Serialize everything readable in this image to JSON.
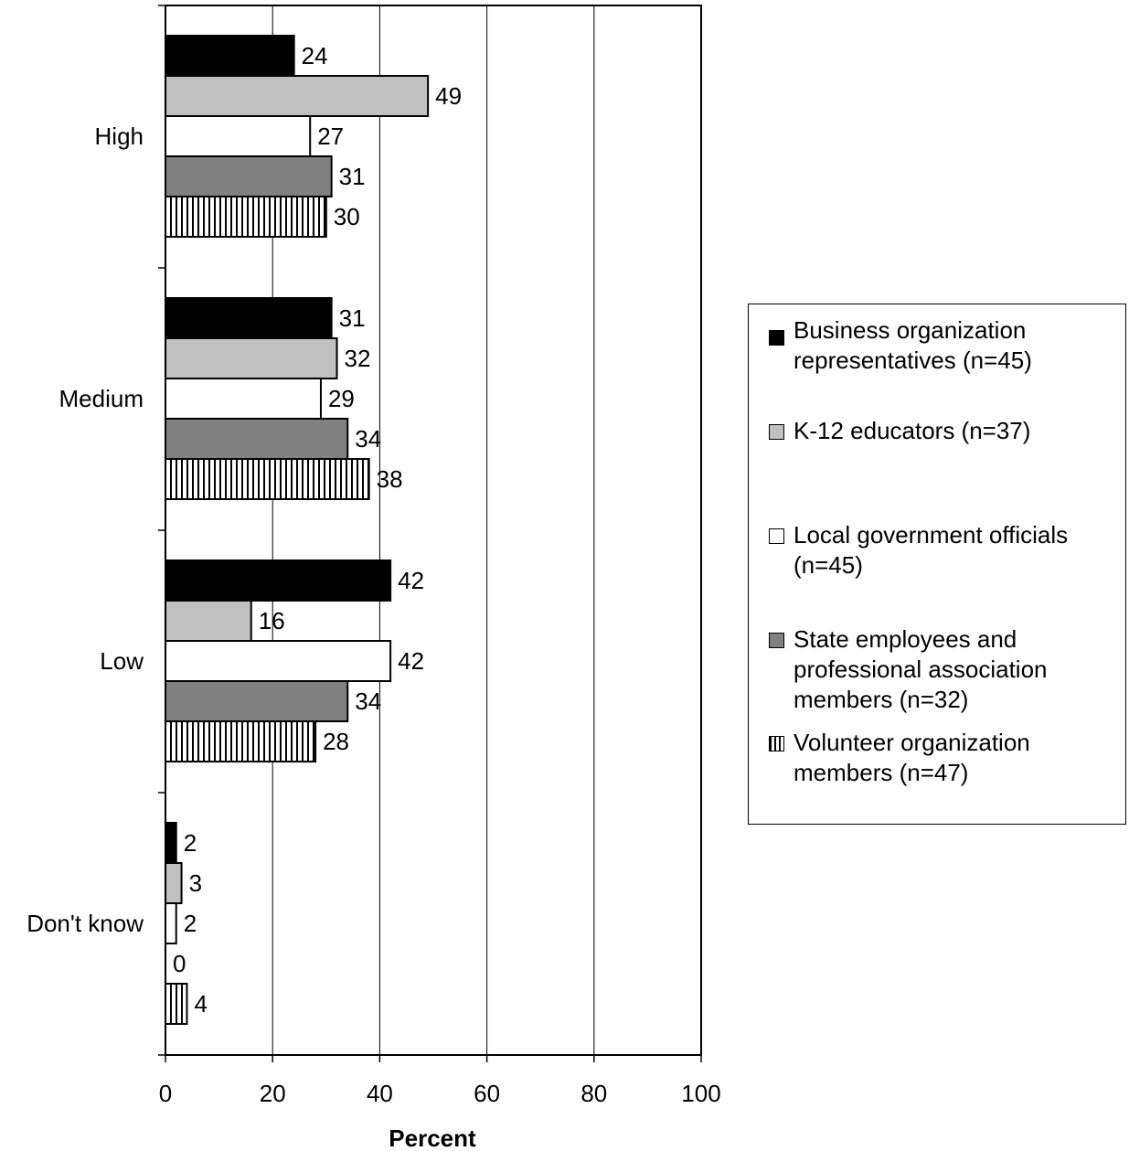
{
  "chart_data": {
    "type": "bar",
    "orientation": "horizontal",
    "categories": [
      "High",
      "Medium",
      "Low",
      "Don't know"
    ],
    "series": [
      {
        "name": "Business organization representatives (n=45)",
        "values": [
          24,
          31,
          42,
          2
        ],
        "color": "#000000",
        "pattern": "solid"
      },
      {
        "name": "K-12 educators (n=37)",
        "values": [
          49,
          32,
          16,
          3
        ],
        "color": "#c0c0c0",
        "pattern": "solid"
      },
      {
        "name": "Local government officials (n=45)",
        "values": [
          27,
          29,
          42,
          2
        ],
        "color": "#ffffff",
        "pattern": "solid"
      },
      {
        "name": "State employees and professional association members (n=32)",
        "values": [
          31,
          34,
          34,
          0
        ],
        "color": "#808080",
        "pattern": "solid"
      },
      {
        "name": "Volunteer organization members (n=47)",
        "values": [
          30,
          38,
          28,
          4
        ],
        "color": "#ffffff",
        "pattern": "vertical-stripes"
      }
    ],
    "xlabel": "Percent",
    "ylabel": "",
    "xlim": [
      0,
      100
    ],
    "xticks": [
      0,
      20,
      40,
      60,
      80,
      100
    ],
    "grid": "vertical",
    "legend_position": "right"
  },
  "legend": {
    "items": [
      {
        "line1": "Business organization",
        "line2": "representatives (n=45)",
        "line3": ""
      },
      {
        "line1": "K-12 educators (n=37)",
        "line2": "",
        "line3": ""
      },
      {
        "line1": "Local government officials",
        "line2": "(n=45)",
        "line3": ""
      },
      {
        "line1": "State employees and",
        "line2": "professional association",
        "line3": "members (n=32)"
      },
      {
        "line1": "Volunteer organization",
        "line2": "members (n=47)",
        "line3": ""
      }
    ]
  }
}
